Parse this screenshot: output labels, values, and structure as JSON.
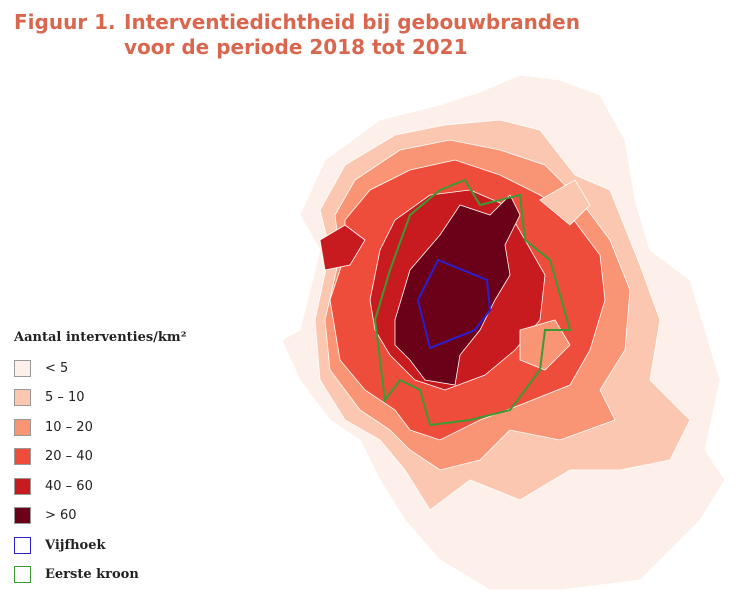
{
  "title": {
    "label": "Figuur 1.",
    "lines": [
      "Interventiedichtheid bij gebouwbranden",
      "voor de periode 2018 tot 2021"
    ]
  },
  "legend": {
    "title": "Aantal interventies/km²",
    "classes": [
      {
        "label": "< 5",
        "color": "#fdf0ea"
      },
      {
        "label": "5 – 10",
        "color": "#fcc7b1"
      },
      {
        "label": "10 – 20",
        "color": "#f99475"
      },
      {
        "label": "20 – 40",
        "color": "#ef4d3b"
      },
      {
        "label": "40 – 60",
        "color": "#c81b1f"
      },
      {
        "label": "> 60",
        "color": "#6b0019"
      }
    ],
    "outlines": [
      {
        "label": "Vijfhoek",
        "color": "#2b1fcf"
      },
      {
        "label": "Eerste kroon",
        "color": "#3c9a35"
      }
    ]
  }
}
